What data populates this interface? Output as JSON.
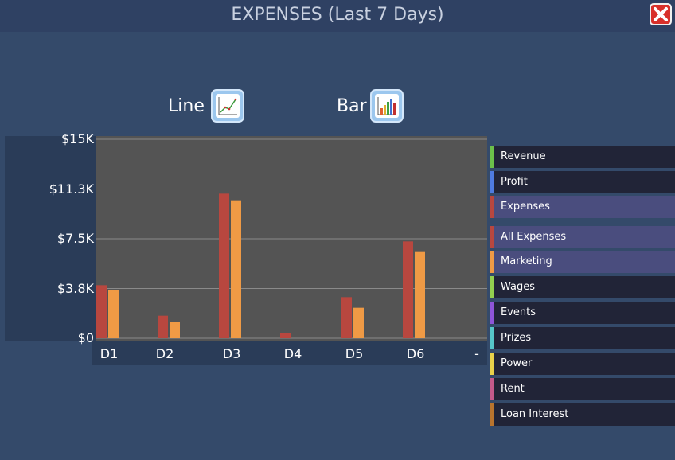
{
  "window": {
    "title": "EXPENSES (Last 7 Days)"
  },
  "modes": {
    "line_label": "Line",
    "bar_label": "Bar"
  },
  "legend": {
    "items": [
      {
        "label": "Revenue",
        "color": "#6cc04a",
        "active": false
      },
      {
        "label": "Profit",
        "color": "#4f7be0",
        "active": false
      },
      {
        "label": "Expenses",
        "color": "#b8473f",
        "active": true
      },
      {
        "label": "All Expenses",
        "color": "#b8473f",
        "active": true
      },
      {
        "label": "Marketing",
        "color": "#ef9a45",
        "active": true
      },
      {
        "label": "Wages",
        "color": "#93cf4f",
        "active": false
      },
      {
        "label": "Events",
        "color": "#8e55d8",
        "active": false
      },
      {
        "label": "Prizes",
        "color": "#56c6c8",
        "active": false
      },
      {
        "label": "Power",
        "color": "#e8d14a",
        "active": false
      },
      {
        "label": "Rent",
        "color": "#c35a8a",
        "active": false
      },
      {
        "label": "Loan Interest",
        "color": "#b8742e",
        "active": false
      }
    ]
  },
  "chart_data": {
    "type": "bar",
    "categories": [
      "D1",
      "D2",
      "D3",
      "D4",
      "D5",
      "D6",
      "-"
    ],
    "ytick_labels": [
      "$15K",
      "$11.3K",
      "$7.5K",
      "$3.8K",
      "$0"
    ],
    "ylim": [
      0,
      15000
    ],
    "grid": true,
    "legend_position": "right",
    "series": [
      {
        "name": "All Expenses",
        "color": "#b8473f",
        "values": [
          4000,
          1700,
          10900,
          400,
          3100,
          7300,
          0
        ]
      },
      {
        "name": "Marketing",
        "color": "#ef9a45",
        "values": [
          3600,
          1200,
          10400,
          0,
          2300,
          6500,
          0
        ]
      }
    ]
  }
}
